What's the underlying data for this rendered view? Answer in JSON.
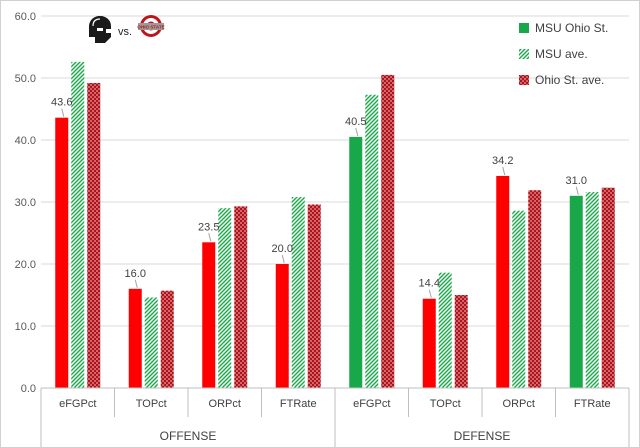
{
  "chart_data": {
    "type": "bar",
    "ylim": [
      0,
      60
    ],
    "yticks": [
      "0.0",
      "10.0",
      "20.0",
      "30.0",
      "40.0",
      "50.0",
      "60.0"
    ],
    "grid": true,
    "legend_position": "top-right",
    "header_text": "vs.",
    "logo_text": "OHIO STATE",
    "groups": [
      {
        "label": "OFFENSE",
        "categories": [
          "eFGPct",
          "TOPct",
          "ORPct",
          "FTRate"
        ]
      },
      {
        "label": "DEFENSE",
        "categories": [
          "eFGPct",
          "TOPct",
          "ORPct",
          "FTRate"
        ]
      }
    ],
    "categories": [
      "eFGPct",
      "TOPct",
      "ORPct",
      "FTRate",
      "eFGPct",
      "TOPct",
      "ORPct",
      "FTRate"
    ],
    "series": [
      {
        "name": "MSU Ohio St.",
        "values": [
          43.6,
          16.0,
          23.5,
          20.0,
          40.5,
          14.4,
          34.2,
          31.0
        ],
        "labels": [
          "43.6",
          "16.0",
          "23.5",
          "20.0",
          "40.5",
          "14.4",
          "34.2",
          "31.0"
        ],
        "point_colors": [
          "#ff0000",
          "#ff0000",
          "#ff0000",
          "#ff0000",
          "#18a84a",
          "#ff0000",
          "#ff0000",
          "#18a84a"
        ],
        "color": "#18a84a"
      },
      {
        "name": "MSU ave.",
        "values": [
          52.6,
          14.6,
          29.0,
          30.8,
          47.3,
          18.6,
          28.6,
          31.6
        ],
        "pattern": "green-hatch",
        "color": "#18a84a"
      },
      {
        "name": "Ohio St. ave.",
        "values": [
          49.2,
          15.7,
          29.3,
          29.6,
          50.5,
          15.0,
          31.9,
          32.3
        ],
        "pattern": "red-crosshatch",
        "color": "#c0141b"
      }
    ]
  }
}
